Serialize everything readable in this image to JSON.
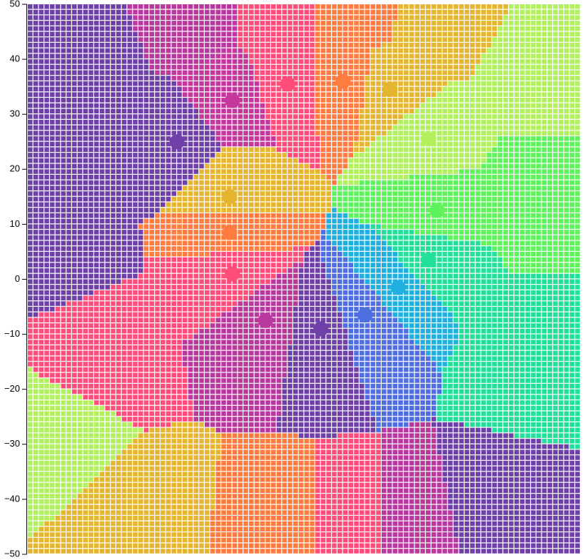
{
  "chart_data": {
    "type": "heatmap",
    "title": "",
    "xlabel": "",
    "ylabel": "",
    "xlim": [
      -50,
      50
    ],
    "ylim": [
      -50,
      50
    ],
    "grid": true,
    "yticks": [
      {
        "value": 50,
        "label": "50"
      },
      {
        "value": 40,
        "label": "40"
      },
      {
        "value": 30,
        "label": "30"
      },
      {
        "value": 20,
        "label": "20"
      },
      {
        "value": 10,
        "label": "10"
      },
      {
        "value": 0,
        "label": "0"
      },
      {
        "value": -10,
        "label": "−10"
      },
      {
        "value": -20,
        "label": "−20"
      },
      {
        "value": -30,
        "label": "−30"
      },
      {
        "value": -40,
        "label": "−40"
      },
      {
        "value": -50,
        "label": "−50"
      }
    ],
    "palette": [
      "#6f40a8",
      "#b9399f",
      "#ff4d7a",
      "#ff7c40",
      "#e5b530",
      "#b2f060",
      "#5ef25c",
      "#22e09b",
      "#20b0e0",
      "#4f6fe0"
    ],
    "points": [
      {
        "x": -23,
        "y": 25,
        "color": "#6f40a8"
      },
      {
        "x": -13,
        "y": 32.5,
        "color": "#c5399f"
      },
      {
        "x": -3,
        "y": 35.5,
        "color": "#ff4d7a"
      },
      {
        "x": 7,
        "y": 36,
        "color": "#ff7c40"
      },
      {
        "x": 15.5,
        "y": 34.5,
        "color": "#e5b530"
      },
      {
        "x": 22.5,
        "y": 25.5,
        "color": "#b2f060"
      },
      {
        "x": 24,
        "y": 12.5,
        "color": "#5ef25c"
      },
      {
        "x": 22.5,
        "y": 3.5,
        "color": "#22e09b"
      },
      {
        "x": 17,
        "y": -1.5,
        "color": "#20b0e0"
      },
      {
        "x": 11,
        "y": -6.5,
        "color": "#4f6fe0"
      },
      {
        "x": 3,
        "y": -9,
        "color": "#6f40a8"
      },
      {
        "x": -7,
        "y": -7.5,
        "color": "#b9399f"
      },
      {
        "x": -13,
        "y": 1,
        "color": "#ff4d7a"
      },
      {
        "x": -13.5,
        "y": 8.5,
        "color": "#ff7c40"
      },
      {
        "x": -13.5,
        "y": 15,
        "color": "#e5b530"
      }
    ],
    "edge_points": [
      {
        "x": -40,
        "y": 40,
        "color": "#6f40a8"
      },
      {
        "x": -20,
        "y": 48,
        "color": "#b9399f"
      },
      {
        "x": -4,
        "y": 48,
        "color": "#ff4d7a"
      },
      {
        "x": 8,
        "y": 48,
        "color": "#ff7c40"
      },
      {
        "x": 25,
        "y": 47,
        "color": "#e5b530"
      },
      {
        "x": 42,
        "y": 38,
        "color": "#b2f060"
      },
      {
        "x": 42,
        "y": 15,
        "color": "#5ef25c"
      },
      {
        "x": 42,
        "y": -12,
        "color": "#22e09b"
      },
      {
        "x": 35,
        "y": -45,
        "color": "#6f40a8"
      },
      {
        "x": 20,
        "y": -48,
        "color": "#b9399f"
      },
      {
        "x": 8,
        "y": -48,
        "color": "#ff4d7a"
      },
      {
        "x": -4,
        "y": -48,
        "color": "#ff7c40"
      },
      {
        "x": -30,
        "y": -45,
        "color": "#e5b530"
      },
      {
        "x": -46,
        "y": -28,
        "color": "#b2f060"
      },
      {
        "x": -38,
        "y": -13,
        "color": "#ff4d7a"
      },
      {
        "x": -45,
        "y": 5,
        "color": "#6f40a8"
      }
    ]
  }
}
